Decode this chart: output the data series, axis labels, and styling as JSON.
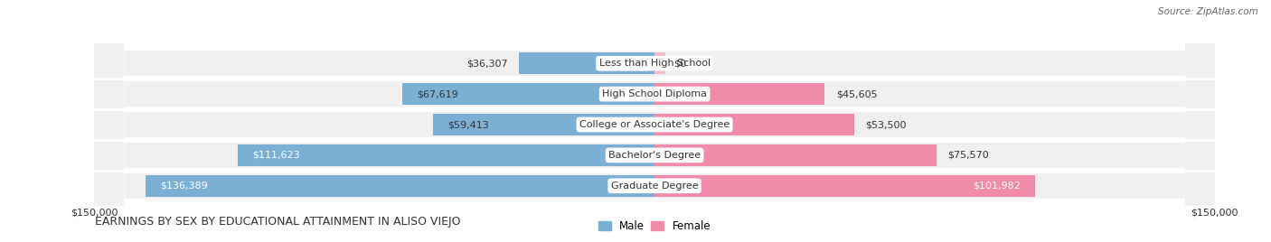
{
  "title": "EARNINGS BY SEX BY EDUCATIONAL ATTAINMENT IN ALISO VIEJO",
  "source": "Source: ZipAtlas.com",
  "categories": [
    "Less than High School",
    "High School Diploma",
    "College or Associate's Degree",
    "Bachelor's Degree",
    "Graduate Degree"
  ],
  "male_values": [
    36307,
    67619,
    59413,
    111623,
    136389
  ],
  "female_values": [
    0,
    45605,
    53500,
    75570,
    101982
  ],
  "male_color": "#7bafd4",
  "female_color": "#f08caa",
  "axis_max": 150000,
  "bg_color": "#ffffff",
  "bar_bg_color": "#e8e8e8",
  "row_bg_color": "#f0f0f0",
  "legend_male": "Male",
  "legend_female": "Female",
  "xlabel_left": "$150,000",
  "xlabel_right": "$150,000"
}
